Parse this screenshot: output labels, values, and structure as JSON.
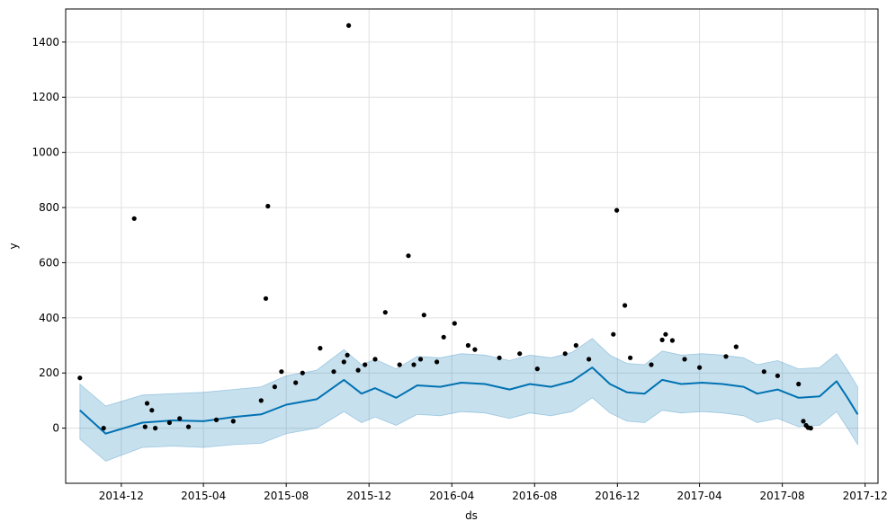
{
  "chart_data": {
    "type": "scatter",
    "title": "",
    "xlabel": "ds",
    "ylabel": "y",
    "xlim": [
      "2014-09-10",
      "2017-12-20"
    ],
    "ylim": [
      -200,
      1520
    ],
    "grid": true,
    "x_ticks": [
      "2014-12",
      "2015-04",
      "2015-08",
      "2015-12",
      "2016-04",
      "2016-08",
      "2016-12",
      "2017-04",
      "2017-08",
      "2017-12"
    ],
    "y_ticks": [
      0,
      200,
      400,
      600,
      800,
      1000,
      1200,
      1400
    ],
    "colors": {
      "points": "#000000",
      "forecast_line": "#0072B2",
      "uncertainty_band": "#0072B2",
      "grid": "#e0e0e0"
    },
    "series": [
      {
        "kind": "observed",
        "points": [
          [
            "2014-10-01",
            182
          ],
          [
            "2014-11-05",
            0
          ],
          [
            "2014-12-20",
            760
          ],
          [
            "2015-01-05",
            5
          ],
          [
            "2015-01-08",
            90
          ],
          [
            "2015-01-15",
            65
          ],
          [
            "2015-01-20",
            0
          ],
          [
            "2015-02-10",
            20
          ],
          [
            "2015-02-25",
            35
          ],
          [
            "2015-03-10",
            5
          ],
          [
            "2015-04-20",
            30
          ],
          [
            "2015-05-15",
            25
          ],
          [
            "2015-06-25",
            100
          ],
          [
            "2015-07-02",
            470
          ],
          [
            "2015-07-05",
            805
          ],
          [
            "2015-07-15",
            150
          ],
          [
            "2015-07-25",
            205
          ],
          [
            "2015-08-15",
            165
          ],
          [
            "2015-08-25",
            200
          ],
          [
            "2015-09-20",
            290
          ],
          [
            "2015-10-10",
            205
          ],
          [
            "2015-10-25",
            240
          ],
          [
            "2015-10-30",
            265
          ],
          [
            "2015-11-01",
            1460
          ],
          [
            "2015-11-15",
            210
          ],
          [
            "2015-11-25",
            230
          ],
          [
            "2015-12-10",
            250
          ],
          [
            "2015-12-25",
            420
          ],
          [
            "2016-01-15",
            230
          ],
          [
            "2016-01-28",
            625
          ],
          [
            "2016-02-05",
            230
          ],
          [
            "2016-02-15",
            250
          ],
          [
            "2016-02-20",
            410
          ],
          [
            "2016-03-10",
            240
          ],
          [
            "2016-03-20",
            330
          ],
          [
            "2016-04-05",
            380
          ],
          [
            "2016-04-25",
            300
          ],
          [
            "2016-05-05",
            285
          ],
          [
            "2016-06-10",
            255
          ],
          [
            "2016-07-10",
            270
          ],
          [
            "2016-08-05",
            215
          ],
          [
            "2016-09-15",
            270
          ],
          [
            "2016-10-01",
            300
          ],
          [
            "2016-10-20",
            250
          ],
          [
            "2016-11-25",
            340
          ],
          [
            "2016-11-30",
            790
          ],
          [
            "2016-12-12",
            445
          ],
          [
            "2016-12-20",
            255
          ],
          [
            "2017-01-20",
            230
          ],
          [
            "2017-02-05",
            320
          ],
          [
            "2017-02-10",
            340
          ],
          [
            "2017-02-20",
            318
          ],
          [
            "2017-03-10",
            250
          ],
          [
            "2017-04-01",
            220
          ],
          [
            "2017-05-10",
            260
          ],
          [
            "2017-05-25",
            295
          ],
          [
            "2017-07-05",
            205
          ],
          [
            "2017-07-25",
            190
          ],
          [
            "2017-08-25",
            160
          ],
          [
            "2017-09-01",
            25
          ],
          [
            "2017-09-05",
            10
          ],
          [
            "2017-09-08",
            2
          ],
          [
            "2017-09-12",
            0
          ]
        ]
      },
      {
        "kind": "forecast_trend",
        "points": [
          [
            "2014-10-01",
            65
          ],
          [
            "2014-11-08",
            -20
          ],
          [
            "2015-01-01",
            20
          ],
          [
            "2015-02-15",
            28
          ],
          [
            "2015-04-01",
            25
          ],
          [
            "2015-05-15",
            40
          ],
          [
            "2015-06-25",
            50
          ],
          [
            "2015-08-01",
            85
          ],
          [
            "2015-09-15",
            105
          ],
          [
            "2015-10-25",
            175
          ],
          [
            "2015-11-20",
            125
          ],
          [
            "2015-12-10",
            145
          ],
          [
            "2016-01-10",
            110
          ],
          [
            "2016-02-10",
            155
          ],
          [
            "2016-03-15",
            150
          ],
          [
            "2016-04-15",
            165
          ],
          [
            "2016-05-20",
            160
          ],
          [
            "2016-06-25",
            140
          ],
          [
            "2016-07-25",
            160
          ],
          [
            "2016-08-25",
            150
          ],
          [
            "2016-09-25",
            170
          ],
          [
            "2016-10-25",
            220
          ],
          [
            "2016-11-20",
            160
          ],
          [
            "2016-12-15",
            130
          ],
          [
            "2017-01-10",
            125
          ],
          [
            "2017-02-05",
            175
          ],
          [
            "2017-03-05",
            160
          ],
          [
            "2017-04-05",
            165
          ],
          [
            "2017-05-05",
            160
          ],
          [
            "2017-06-05",
            150
          ],
          [
            "2017-06-25",
            125
          ],
          [
            "2017-07-25",
            140
          ],
          [
            "2017-08-25",
            110
          ],
          [
            "2017-09-25",
            115
          ],
          [
            "2017-10-20",
            170
          ],
          [
            "2017-11-05",
            110
          ],
          [
            "2017-11-20",
            50
          ]
        ]
      },
      {
        "kind": "uncertainty",
        "lower": [
          [
            "2014-10-01",
            -40
          ],
          [
            "2014-11-08",
            -120
          ],
          [
            "2015-01-01",
            -70
          ],
          [
            "2015-02-15",
            -65
          ],
          [
            "2015-04-01",
            -70
          ],
          [
            "2015-05-15",
            -60
          ],
          [
            "2015-06-25",
            -55
          ],
          [
            "2015-08-01",
            -20
          ],
          [
            "2015-09-15",
            0
          ],
          [
            "2015-10-25",
            60
          ],
          [
            "2015-11-20",
            20
          ],
          [
            "2015-12-10",
            40
          ],
          [
            "2016-01-10",
            10
          ],
          [
            "2016-02-10",
            50
          ],
          [
            "2016-03-15",
            45
          ],
          [
            "2016-04-15",
            60
          ],
          [
            "2016-05-20",
            55
          ],
          [
            "2016-06-25",
            35
          ],
          [
            "2016-07-25",
            55
          ],
          [
            "2016-08-25",
            45
          ],
          [
            "2016-09-25",
            60
          ],
          [
            "2016-10-25",
            110
          ],
          [
            "2016-11-20",
            55
          ],
          [
            "2016-12-15",
            25
          ],
          [
            "2017-01-10",
            20
          ],
          [
            "2017-02-05",
            65
          ],
          [
            "2017-03-05",
            55
          ],
          [
            "2017-04-05",
            60
          ],
          [
            "2017-05-05",
            55
          ],
          [
            "2017-06-05",
            45
          ],
          [
            "2017-06-25",
            20
          ],
          [
            "2017-07-25",
            35
          ],
          [
            "2017-08-25",
            5
          ],
          [
            "2017-09-25",
            10
          ],
          [
            "2017-10-20",
            60
          ],
          [
            "2017-11-05",
            0
          ],
          [
            "2017-11-20",
            -60
          ]
        ],
        "upper": [
          [
            "2014-10-01",
            160
          ],
          [
            "2014-11-08",
            80
          ],
          [
            "2015-01-01",
            120
          ],
          [
            "2015-02-15",
            125
          ],
          [
            "2015-04-01",
            130
          ],
          [
            "2015-05-15",
            140
          ],
          [
            "2015-06-25",
            150
          ],
          [
            "2015-08-01",
            190
          ],
          [
            "2015-09-15",
            210
          ],
          [
            "2015-10-25",
            285
          ],
          [
            "2015-11-20",
            230
          ],
          [
            "2015-12-10",
            250
          ],
          [
            "2016-01-10",
            215
          ],
          [
            "2016-02-10",
            260
          ],
          [
            "2016-03-15",
            255
          ],
          [
            "2016-04-15",
            270
          ],
          [
            "2016-05-20",
            265
          ],
          [
            "2016-06-25",
            245
          ],
          [
            "2016-07-25",
            265
          ],
          [
            "2016-08-25",
            255
          ],
          [
            "2016-09-25",
            275
          ],
          [
            "2016-10-25",
            325
          ],
          [
            "2016-11-20",
            265
          ],
          [
            "2016-12-15",
            235
          ],
          [
            "2017-01-10",
            230
          ],
          [
            "2017-02-05",
            280
          ],
          [
            "2017-03-05",
            265
          ],
          [
            "2017-04-05",
            270
          ],
          [
            "2017-05-05",
            265
          ],
          [
            "2017-06-05",
            255
          ],
          [
            "2017-06-25",
            230
          ],
          [
            "2017-07-25",
            245
          ],
          [
            "2017-08-25",
            215
          ],
          [
            "2017-09-25",
            220
          ],
          [
            "2017-10-20",
            270
          ],
          [
            "2017-11-05",
            210
          ],
          [
            "2017-11-20",
            150
          ]
        ]
      }
    ]
  }
}
